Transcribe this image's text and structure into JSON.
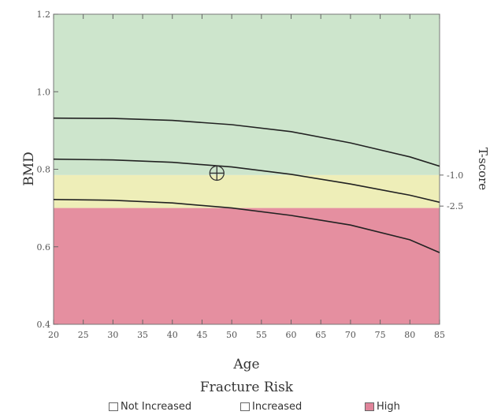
{
  "chart_data": {
    "type": "area",
    "xlabel": "Age",
    "ylabel": "BMD",
    "y2label": "T-score",
    "xlim": [
      20,
      85
    ],
    "ylim": [
      0.4,
      1.2
    ],
    "x_ticks": [
      20,
      25,
      30,
      35,
      40,
      45,
      50,
      55,
      60,
      65,
      70,
      75,
      80,
      85
    ],
    "y_ticks": [
      0.4,
      0.6,
      0.8,
      1.0,
      1.2
    ],
    "y_tick_labels": [
      "0.4",
      "0.6",
      "0.8",
      "1.0",
      "1.2"
    ],
    "right_axis_labels": [
      {
        "text": "-1.0",
        "y": 0.785
      },
      {
        "text": "-2.5",
        "y": 0.705
      }
    ],
    "x_tick_labels": [
      "20",
      "25",
      "30",
      "35",
      "40",
      "45",
      "50",
      "55",
      "60",
      "65",
      "70",
      "75",
      "80",
      "85"
    ],
    "zones": [
      {
        "name": "Not Increased",
        "y_from": 0.785,
        "y_to": 1.2,
        "color": "#cde5cc"
      },
      {
        "name": "Increased",
        "y_from": 0.7,
        "y_to": 0.785,
        "color": "#eeeeb8"
      },
      {
        "name": "High",
        "y_from": 0.4,
        "y_to": 0.7,
        "color": "#e58fa0"
      }
    ],
    "curves": [
      {
        "x": [
          20,
          30,
          40,
          50,
          60,
          70,
          80,
          85
        ],
        "y": [
          0.932,
          0.931,
          0.926,
          0.915,
          0.897,
          0.868,
          0.832,
          0.808
        ]
      },
      {
        "x": [
          20,
          30,
          40,
          50,
          60,
          70,
          80,
          85
        ],
        "y": [
          0.826,
          0.824,
          0.818,
          0.806,
          0.787,
          0.762,
          0.733,
          0.715
        ]
      },
      {
        "x": [
          20,
          30,
          40,
          50,
          60,
          70,
          80,
          85
        ],
        "y": [
          0.722,
          0.72,
          0.713,
          0.7,
          0.681,
          0.656,
          0.618,
          0.585
        ]
      }
    ],
    "marker": {
      "x": 47.5,
      "y": 0.79
    },
    "legend": {
      "title": "Fracture Risk",
      "placement": "bottom",
      "items": [
        {
          "label": "Not Increased",
          "color": "#ffffff"
        },
        {
          "label": "Increased",
          "color": "#ffffff"
        },
        {
          "label": "High",
          "color": "#e0849a"
        }
      ]
    }
  }
}
